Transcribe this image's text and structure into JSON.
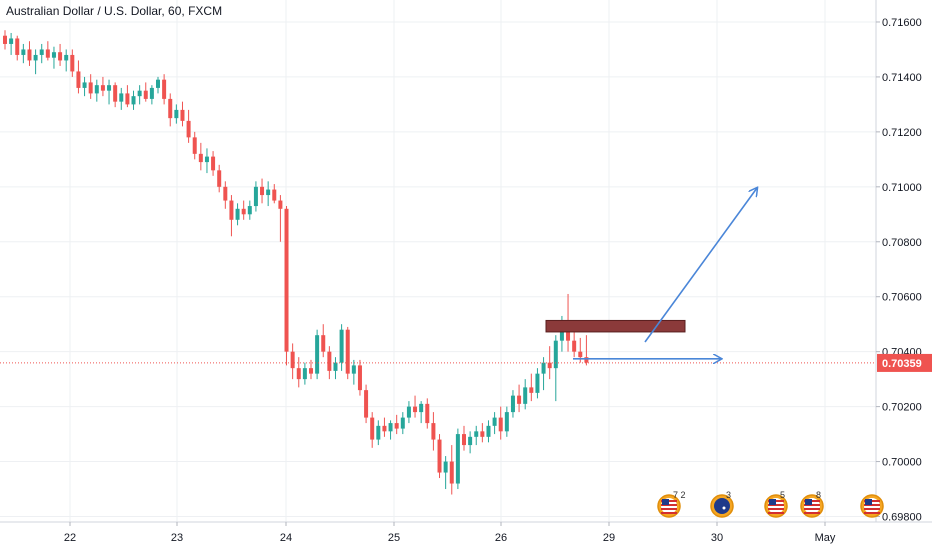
{
  "chart_data": {
    "type": "candlestick",
    "title": "Australian Dollar / U.S. Dollar, 60, FXCM",
    "ylim": [
      0.6978,
      0.7168
    ],
    "y_ticks": [
      "0.71600",
      "0.71400",
      "0.71200",
      "0.71000",
      "0.70800",
      "0.70600",
      "0.70400",
      "0.70200",
      "0.70000",
      "0.69800"
    ],
    "x_ticks": [
      "22",
      "23",
      "24",
      "25",
      "26",
      "29",
      "30",
      "May"
    ],
    "current_price": "0.70359",
    "current_price_value": 0.70359,
    "colors": {
      "up": "#26a69a",
      "down": "#ef5350",
      "current": "#ef5350",
      "arrow": "#4a86d8",
      "zone": "#8b3a3a",
      "grid": "#eef0f3"
    },
    "candles": [
      [
        0.7155,
        0.7157,
        0.715,
        0.7152
      ],
      [
        0.7152,
        0.7156,
        0.7148,
        0.7154
      ],
      [
        0.7154,
        0.7155,
        0.7146,
        0.7148
      ],
      [
        0.7148,
        0.7152,
        0.7145,
        0.715
      ],
      [
        0.715,
        0.7153,
        0.7144,
        0.7146
      ],
      [
        0.7146,
        0.715,
        0.7141,
        0.7148
      ],
      [
        0.7148,
        0.7152,
        0.7145,
        0.715
      ],
      [
        0.715,
        0.7153,
        0.7146,
        0.7147
      ],
      [
        0.7147,
        0.7151,
        0.7143,
        0.7149
      ],
      [
        0.7149,
        0.7152,
        0.7144,
        0.7146
      ],
      [
        0.7146,
        0.715,
        0.7142,
        0.7148
      ],
      [
        0.7148,
        0.715,
        0.714,
        0.7142
      ],
      [
        0.7142,
        0.7146,
        0.7134,
        0.7136
      ],
      [
        0.7136,
        0.714,
        0.7133,
        0.7138
      ],
      [
        0.7138,
        0.7141,
        0.7132,
        0.7134
      ],
      [
        0.7134,
        0.7139,
        0.7131,
        0.7137
      ],
      [
        0.7137,
        0.714,
        0.7133,
        0.7135
      ],
      [
        0.7135,
        0.7139,
        0.713,
        0.7137
      ],
      [
        0.7137,
        0.7138,
        0.7129,
        0.7131
      ],
      [
        0.7131,
        0.7136,
        0.7128,
        0.7134
      ],
      [
        0.7134,
        0.7137,
        0.7129,
        0.713
      ],
      [
        0.713,
        0.7135,
        0.7128,
        0.7133
      ],
      [
        0.7133,
        0.7137,
        0.713,
        0.7135
      ],
      [
        0.7135,
        0.7138,
        0.7131,
        0.7132
      ],
      [
        0.7132,
        0.7137,
        0.713,
        0.7136
      ],
      [
        0.7136,
        0.714,
        0.7134,
        0.7139
      ],
      [
        0.7139,
        0.7141,
        0.713,
        0.7132
      ],
      [
        0.7132,
        0.7134,
        0.7122,
        0.7125
      ],
      [
        0.7125,
        0.713,
        0.7123,
        0.7128
      ],
      [
        0.7128,
        0.7131,
        0.7122,
        0.7124
      ],
      [
        0.7124,
        0.7128,
        0.7116,
        0.7118
      ],
      [
        0.7118,
        0.712,
        0.711,
        0.7112
      ],
      [
        0.7112,
        0.7116,
        0.7106,
        0.7109
      ],
      [
        0.7109,
        0.7114,
        0.7105,
        0.7111
      ],
      [
        0.7111,
        0.7113,
        0.7104,
        0.7106
      ],
      [
        0.7106,
        0.7108,
        0.7098,
        0.71
      ],
      [
        0.71,
        0.7102,
        0.7092,
        0.7095
      ],
      [
        0.7095,
        0.7097,
        0.7082,
        0.7088
      ],
      [
        0.7088,
        0.7094,
        0.7086,
        0.7092
      ],
      [
        0.7092,
        0.7095,
        0.7088,
        0.709
      ],
      [
        0.709,
        0.7095,
        0.7088,
        0.7093
      ],
      [
        0.7093,
        0.7102,
        0.7091,
        0.71
      ],
      [
        0.71,
        0.7103,
        0.7094,
        0.7097
      ],
      [
        0.7097,
        0.7102,
        0.7093,
        0.7099
      ],
      [
        0.7099,
        0.7101,
        0.7094,
        0.7095
      ],
      [
        0.7095,
        0.7097,
        0.708,
        0.7092
      ],
      [
        0.7092,
        0.7093,
        0.7035,
        0.704
      ],
      [
        0.704,
        0.7043,
        0.703,
        0.7034
      ],
      [
        0.7034,
        0.7038,
        0.7027,
        0.703
      ],
      [
        0.703,
        0.7036,
        0.7028,
        0.7034
      ],
      [
        0.7034,
        0.7037,
        0.703,
        0.7032
      ],
      [
        0.7032,
        0.7048,
        0.703,
        0.7046
      ],
      [
        0.7046,
        0.705,
        0.7038,
        0.704
      ],
      [
        0.704,
        0.7042,
        0.703,
        0.7033
      ],
      [
        0.7033,
        0.7038,
        0.703,
        0.7036
      ],
      [
        0.7036,
        0.705,
        0.7033,
        0.7048
      ],
      [
        0.7048,
        0.7049,
        0.703,
        0.7032
      ],
      [
        0.7032,
        0.7037,
        0.7028,
        0.7035
      ],
      [
        0.7035,
        0.7037,
        0.7024,
        0.7026
      ],
      [
        0.7026,
        0.7028,
        0.7014,
        0.7016
      ],
      [
        0.7016,
        0.7018,
        0.7005,
        0.7008
      ],
      [
        0.7008,
        0.7015,
        0.7006,
        0.7013
      ],
      [
        0.7013,
        0.7016,
        0.7009,
        0.7011
      ],
      [
        0.7011,
        0.7015,
        0.7008,
        0.7014
      ],
      [
        0.7014,
        0.7017,
        0.701,
        0.7012
      ],
      [
        0.7012,
        0.7018,
        0.701,
        0.7016
      ],
      [
        0.7016,
        0.7022,
        0.7014,
        0.702
      ],
      [
        0.702,
        0.7024,
        0.7016,
        0.7018
      ],
      [
        0.7018,
        0.7022,
        0.7014,
        0.7021
      ],
      [
        0.7021,
        0.7023,
        0.7012,
        0.7014
      ],
      [
        0.7014,
        0.7018,
        0.7004,
        0.7008
      ],
      [
        0.7008,
        0.701,
        0.6994,
        0.6996
      ],
      [
        0.6996,
        0.7002,
        0.699,
        0.7
      ],
      [
        0.7,
        0.7006,
        0.6988,
        0.6992
      ],
      [
        0.6992,
        0.7012,
        0.699,
        0.701
      ],
      [
        0.701,
        0.7013,
        0.7004,
        0.7006
      ],
      [
        0.7006,
        0.7011,
        0.7003,
        0.7009
      ],
      [
        0.7009,
        0.7013,
        0.7006,
        0.7011
      ],
      [
        0.7011,
        0.7014,
        0.7007,
        0.7009
      ],
      [
        0.7009,
        0.7015,
        0.7007,
        0.7013
      ],
      [
        0.7013,
        0.7018,
        0.701,
        0.7016
      ],
      [
        0.7016,
        0.702,
        0.7008,
        0.7011
      ],
      [
        0.7011,
        0.702,
        0.7009,
        0.7018
      ],
      [
        0.7018,
        0.7026,
        0.7016,
        0.7024
      ],
      [
        0.7024,
        0.7028,
        0.7018,
        0.7021
      ],
      [
        0.7021,
        0.703,
        0.7019,
        0.7027
      ],
      [
        0.7027,
        0.7032,
        0.7022,
        0.7025
      ],
      [
        0.7025,
        0.7034,
        0.7023,
        0.7032
      ],
      [
        0.7032,
        0.7038,
        0.7026,
        0.7036
      ],
      [
        0.7036,
        0.7042,
        0.703,
        0.7034
      ],
      [
        0.7034,
        0.7046,
        0.7022,
        0.7044
      ],
      [
        0.7044,
        0.7053,
        0.704,
        0.7048
      ],
      [
        0.7048,
        0.7061,
        0.704,
        0.7044
      ],
      [
        0.7044,
        0.7048,
        0.7038,
        0.704
      ],
      [
        0.704,
        0.7045,
        0.7036,
        0.7038
      ],
      [
        0.7038,
        0.7046,
        0.7035,
        0.7036
      ]
    ],
    "annotations": [
      {
        "type": "resistance-zone",
        "from": 0.7049,
        "to": 0.7051
      },
      {
        "type": "arrow",
        "direction": "up",
        "label": ""
      },
      {
        "type": "arrow",
        "direction": "right",
        "label": ""
      }
    ],
    "event_badges": [
      {
        "label": "7 2",
        "flag": "US"
      },
      {
        "label": "3",
        "flag": "AU"
      },
      {
        "label": "5",
        "flag": "US"
      },
      {
        "label": "8",
        "flag": "US"
      },
      {
        "label": "",
        "flag": "US"
      }
    ]
  }
}
